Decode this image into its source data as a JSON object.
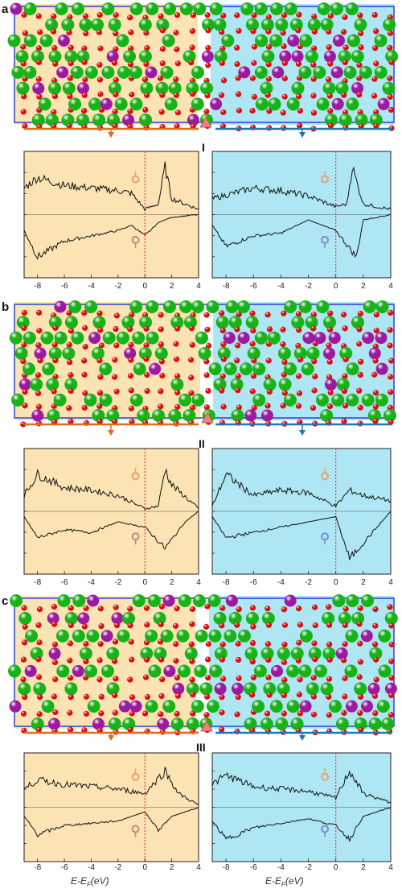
{
  "colors": {
    "left_region": "#fbe3b3",
    "right_region": "#aee6f3",
    "cell_border": "#2e3fd8",
    "left_arrow": "#e06b1c",
    "right_arrow": "#1c77b8",
    "atom_large": "#19b319",
    "atom_medium": "#9b1ba0",
    "atom_small": "#d80f0f",
    "fermi_line": "#e02020",
    "interface_marker": "#f08080",
    "spin_up_symbol": "#e8a070",
    "spin_down_symbol_left": "#c08a80",
    "spin_down_symbol_right": "#7a8ad8"
  },
  "panels": [
    {
      "label": "a",
      "interface": "I"
    },
    {
      "label": "b",
      "interface": "II"
    },
    {
      "label": "c",
      "interface": "III"
    }
  ],
  "x_axis": {
    "ticks": [
      "-8",
      "-6",
      "-4",
      "-2",
      "0",
      "2",
      "4"
    ],
    "label": "E-E",
    "label_sub": "F",
    "label_unit": "(eV)"
  },
  "chart_data": [
    {
      "type": "line",
      "panel": "a",
      "region": "left",
      "xlim": [
        -9,
        4
      ],
      "series": [
        {
          "values": [
            [
              -9,
              0.5
            ],
            [
              -8,
              0.7
            ],
            [
              -6,
              0.55
            ],
            [
              -4,
              0.5
            ],
            [
              -2,
              0.45
            ],
            [
              -1,
              0.4
            ],
            [
              0,
              0.1
            ],
            [
              1,
              0.2
            ],
            [
              1.5,
              0.9
            ],
            [
              2,
              0.3
            ],
            [
              4,
              0.1
            ]
          ]
        },
        {
          "values": [
            [
              -9,
              -0.3
            ],
            [
              -8,
              -0.8
            ],
            [
              -6,
              -0.5
            ],
            [
              -4,
              -0.4
            ],
            [
              -2,
              -0.3
            ],
            [
              -1,
              -0.2
            ],
            [
              0,
              -0.4
            ],
            [
              1,
              -0.15
            ],
            [
              2,
              -0.05
            ],
            [
              4,
              0
            ]
          ]
        }
      ]
    },
    {
      "type": "line",
      "panel": "a",
      "region": "right",
      "xlim": [
        -9,
        4
      ],
      "series": [
        {
          "values": [
            [
              -9,
              0.3
            ],
            [
              -6,
              0.5
            ],
            [
              -4,
              0.45
            ],
            [
              -2,
              0.35
            ],
            [
              0,
              0.15
            ],
            [
              0.8,
              0.2
            ],
            [
              1.2,
              0.9
            ],
            [
              2,
              0.2
            ],
            [
              4,
              0.1
            ]
          ]
        },
        {
          "values": [
            [
              -9,
              -0.2
            ],
            [
              -8,
              -0.6
            ],
            [
              -6,
              -0.4
            ],
            [
              -4,
              -0.35
            ],
            [
              -2,
              -0.1
            ],
            [
              0,
              -0.3
            ],
            [
              1.5,
              -0.8
            ],
            [
              2,
              -0.1
            ],
            [
              4,
              0
            ]
          ]
        }
      ]
    },
    {
      "type": "line",
      "panel": "b",
      "region": "left",
      "xlim": [
        -9,
        4
      ],
      "series": [
        {
          "values": [
            [
              -9,
              0.3
            ],
            [
              -8,
              0.7
            ],
            [
              -6,
              0.45
            ],
            [
              -4,
              0.4
            ],
            [
              -2,
              0.3
            ],
            [
              0,
              0.05
            ],
            [
              1,
              0.1
            ],
            [
              1.5,
              0.8
            ],
            [
              2,
              0.5
            ],
            [
              4,
              0.05
            ]
          ]
        },
        {
          "values": [
            [
              -9,
              -0.1
            ],
            [
              -8,
              -0.5
            ],
            [
              -6,
              -0.35
            ],
            [
              -4,
              -0.4
            ],
            [
              -2,
              -0.2
            ],
            [
              0,
              -0.3
            ],
            [
              1.5,
              -0.7
            ],
            [
              3,
              -0.2
            ],
            [
              4,
              0
            ]
          ]
        }
      ]
    },
    {
      "type": "line",
      "panel": "b",
      "region": "right",
      "xlim": [
        -9,
        4
      ],
      "series": [
        {
          "values": [
            [
              -9,
              0.1
            ],
            [
              -8,
              0.7
            ],
            [
              -6,
              0.3
            ],
            [
              -4,
              0.4
            ],
            [
              -2,
              0.35
            ],
            [
              0,
              0.1
            ],
            [
              1,
              0.4
            ],
            [
              2,
              0.3
            ],
            [
              4,
              0.2
            ]
          ]
        },
        {
          "values": [
            [
              -9,
              -0.1
            ],
            [
              -8,
              -0.5
            ],
            [
              -6,
              -0.4
            ],
            [
              -4,
              -0.3
            ],
            [
              -2,
              -0.2
            ],
            [
              0,
              -0.1
            ],
            [
              1,
              -0.9
            ],
            [
              2,
              -0.6
            ],
            [
              4,
              0
            ]
          ]
        }
      ]
    },
    {
      "type": "line",
      "panel": "c",
      "region": "left",
      "xlim": [
        -9,
        4
      ],
      "series": [
        {
          "values": [
            [
              -9,
              0.4
            ],
            [
              -8,
              0.6
            ],
            [
              -6,
              0.5
            ],
            [
              -4,
              0.45
            ],
            [
              -2,
              0.4
            ],
            [
              0,
              0.3
            ],
            [
              1.5,
              0.8
            ],
            [
              2.5,
              0.3
            ],
            [
              4,
              0.05
            ]
          ]
        },
        {
          "values": [
            [
              -9,
              -0.2
            ],
            [
              -8,
              -0.6
            ],
            [
              -6,
              -0.4
            ],
            [
              -4,
              -0.35
            ],
            [
              -2,
              -0.3
            ],
            [
              0,
              -0.1
            ],
            [
              1,
              -0.5
            ],
            [
              2,
              -0.2
            ],
            [
              4,
              0
            ]
          ]
        }
      ]
    },
    {
      "type": "line",
      "panel": "c",
      "region": "right",
      "xlim": [
        -9,
        4
      ],
      "series": [
        {
          "values": [
            [
              -9,
              0.5
            ],
            [
              -8,
              0.7
            ],
            [
              -6,
              0.45
            ],
            [
              -4,
              0.4
            ],
            [
              -2,
              0.35
            ],
            [
              0,
              0.2
            ],
            [
              1,
              0.8
            ],
            [
              2,
              0.3
            ],
            [
              4,
              0.1
            ]
          ]
        },
        {
          "values": [
            [
              -9,
              -0.3
            ],
            [
              -8,
              -0.7
            ],
            [
              -6,
              -0.45
            ],
            [
              -4,
              -0.35
            ],
            [
              -2,
              -0.25
            ],
            [
              0,
              -0.4
            ],
            [
              1,
              -0.7
            ],
            [
              2,
              -0.2
            ],
            [
              4,
              0
            ]
          ]
        }
      ]
    }
  ]
}
